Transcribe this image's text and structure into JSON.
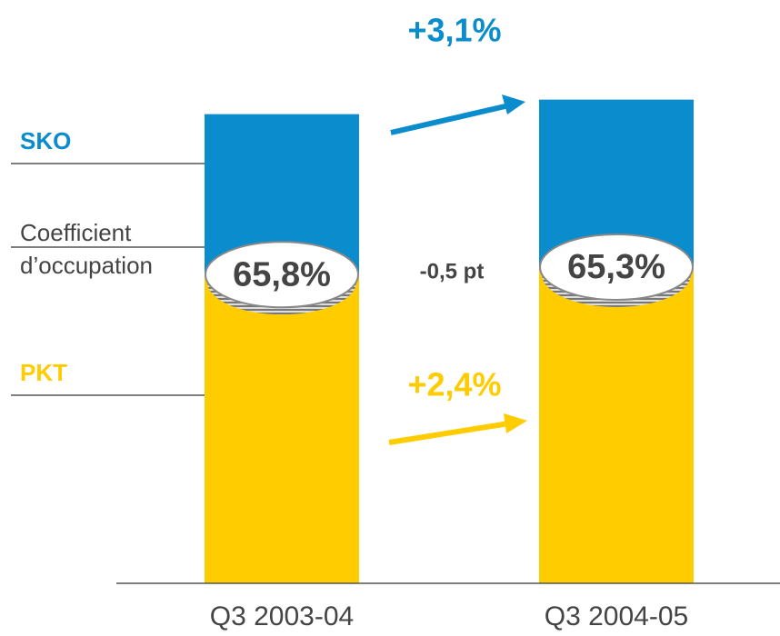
{
  "chart_data": {
    "type": "overlap-bar",
    "categories": [
      "Q3 2003-04",
      "Q3 2004-05"
    ],
    "series": [
      {
        "name": "SKO",
        "color": "#0a8ccd",
        "values": [
          100,
          103.1
        ]
      },
      {
        "name": "PKT",
        "color": "#ffcc00",
        "values": [
          65.8,
          67.4
        ]
      },
      {
        "name": "Coefficient d’occupation",
        "color": "#555555",
        "values": [
          65.8,
          65.3
        ],
        "value_labels": [
          "65,8%",
          "65,3%"
        ]
      }
    ],
    "ylim": [
      0,
      110
    ],
    "annotations": [
      {
        "text": "+3,1%",
        "color": "#0a8ccd"
      },
      {
        "text": "-0,5 pt",
        "color": "#444444"
      },
      {
        "text": "+2,4%",
        "color": "#ffcc00"
      }
    ]
  }
}
